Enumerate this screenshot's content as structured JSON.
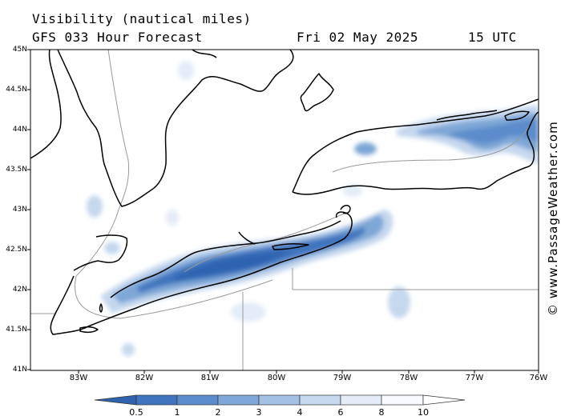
{
  "header": {
    "title": "Visibility (nautical miles)",
    "forecast": "GFS 033 Hour Forecast",
    "date": "Fri 02 May 2025",
    "time": "15 UTC"
  },
  "map": {
    "lat_labels": [
      "45N",
      "44.5N",
      "44N",
      "43.5N",
      "43N",
      "42.5N",
      "42N",
      "41.5N",
      "41N"
    ],
    "lon_labels": [
      "83W",
      "82W",
      "81W",
      "80W",
      "79W",
      "78W",
      "77W",
      "76W"
    ],
    "land_color": "#ffffff",
    "coast_color": "#000000",
    "border_color": "#999999"
  },
  "legend": {
    "labels": [
      "0.5",
      "1",
      "2",
      "3",
      "4",
      "6",
      "8",
      "10"
    ],
    "colors": [
      "#2f63b0",
      "#3f74be",
      "#5b8ccb",
      "#7fa7d7",
      "#a4c0e3",
      "#c6d8ee",
      "#e3ecf7",
      "#ffffff"
    ]
  },
  "credit": "© www.PassageWeather.com"
}
